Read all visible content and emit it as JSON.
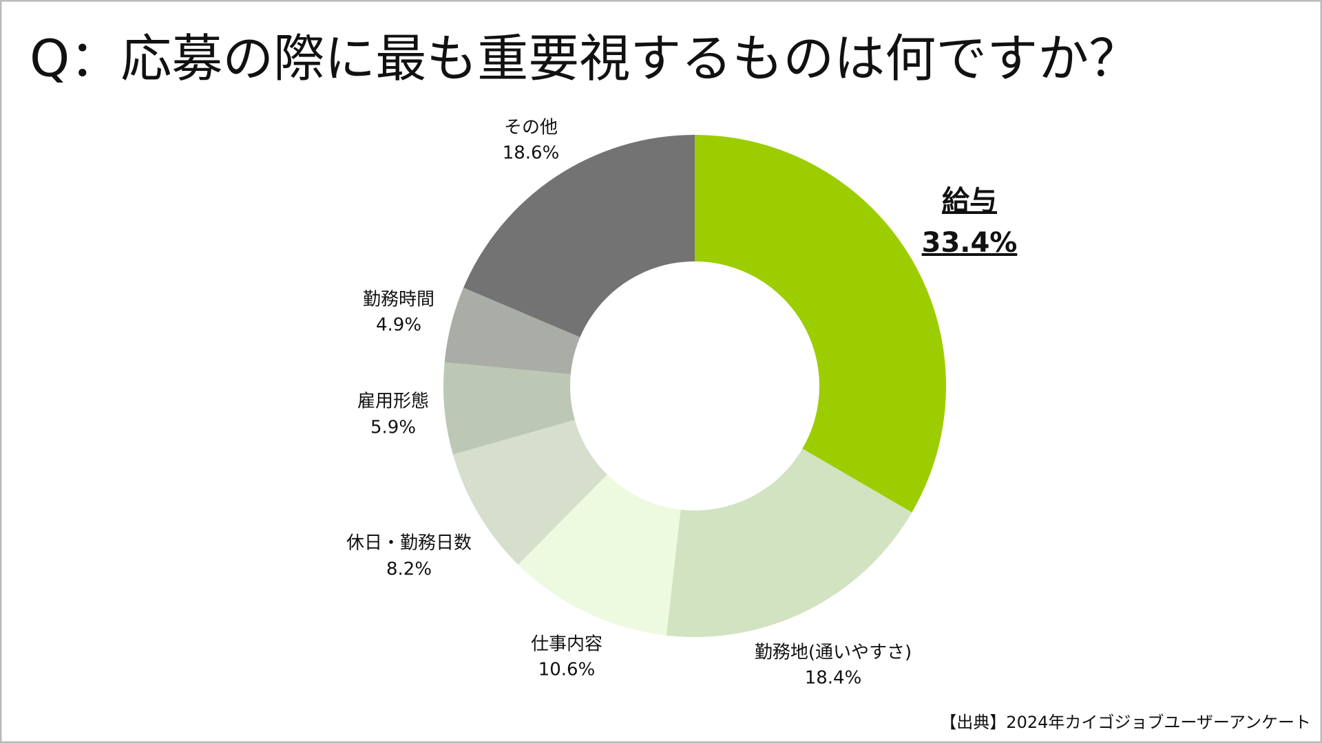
{
  "chart_data": {
    "type": "donut",
    "title": "Q：応募の際に最も重要視するものは何ですか？",
    "categories": [
      "給与",
      "勤務地(通いやすさ)",
      "仕事内容",
      "休日・勤務日数",
      "雇用形態",
      "勤務時間",
      "その他"
    ],
    "values": [
      33.4,
      18.4,
      10.6,
      8.2,
      5.9,
      4.9,
      18.6
    ],
    "value_labels": [
      "33.4%",
      "18.4%",
      "10.6%",
      "8.2%",
      "5.9%",
      "4.9%",
      "18.6%"
    ],
    "colors": [
      "#9ccd00",
      "#d1e3c0",
      "#eefae0",
      "#d5dfcc",
      "#bdc8b4",
      "#a9ada6",
      "#737373"
    ],
    "source": "【出典】2024年カイゴジョブユーザーアンケート"
  }
}
